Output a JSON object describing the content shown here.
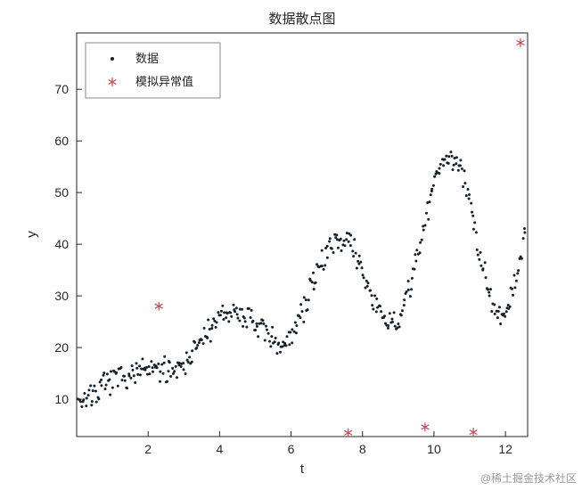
{
  "title": "数据散点图",
  "watermark": "@稀土掘金技术社区",
  "axes": {
    "xlabel": "t",
    "ylabel": "y",
    "x_ticks": [
      2,
      4,
      6,
      8,
      10,
      12
    ],
    "y_ticks": [
      10,
      20,
      30,
      40,
      50,
      60,
      70
    ],
    "x_range": [
      0,
      12.62
    ],
    "y_range": [
      2.76,
      80.9
    ]
  },
  "legend": {
    "items": [
      {
        "label": "数据",
        "marker": "dot"
      },
      {
        "label": "模拟异常值",
        "marker": "asterisk"
      }
    ]
  },
  "colors": {
    "data_points": "#13212c",
    "outliers": "#c94752",
    "axis": "#262626",
    "legend_border": "#8a8a8a",
    "watermark": "#9a9a9a"
  },
  "chart_data": {
    "type": "scatter",
    "title": "数据散点图",
    "xlabel": "t",
    "ylabel": "y",
    "x_range": [
      0,
      12.62
    ],
    "y_range": [
      2.76,
      80.9
    ],
    "grid": false,
    "legend_position": "top-left-inside",
    "series": [
      {
        "name": "数据",
        "marker": "point",
        "color": "#13212c",
        "description": "Dense noisy scatter: rising oscillating trend from y~10 at t=0 to y~42-51 at t~12.5; local maxima near (4.2,27), (7.1,43), (10.3,57); local minima near (5.7,21), (8.7,24), (11.9,29).",
        "generator": {
          "n": 420,
          "t_min": 0.05,
          "t_max": 12.55,
          "intercept": 9.8,
          "slope": 3.05,
          "amp_coef": 0.42,
          "amp_pow": 1.55,
          "period": 3.1,
          "phase_t0": 3.375,
          "noise": 2.9,
          "seed": 7
        }
      },
      {
        "name": "模拟异常值",
        "marker": "asterisk",
        "color": "#c94752",
        "points": [
          [
            2.3,
            28
          ],
          [
            7.6,
            3.5
          ],
          [
            9.75,
            4.6
          ],
          [
            11.1,
            3.6
          ],
          [
            12.42,
            79
          ]
        ]
      }
    ]
  }
}
